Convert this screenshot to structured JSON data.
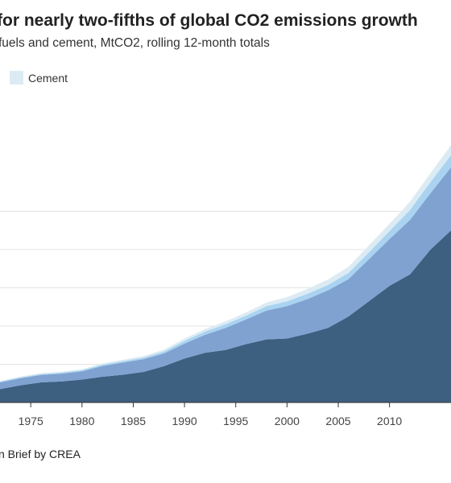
{
  "header": {
    "title": "for nearly two-fifths of global CO2 emissions growth",
    "subtitle": "fuels and cement, MtCO2, rolling 12-month totals"
  },
  "legend": {
    "items": [
      {
        "label": "Cement",
        "color": "#dcebf3"
      }
    ]
  },
  "footer": {
    "source": "n Brief by CREA"
  },
  "chart_data": {
    "type": "area",
    "stacked": true,
    "title": "for nearly two-fifths of global CO2 emissions growth",
    "subtitle": "fuels and cement, MtCO2, rolling 12-month totals",
    "x": [
      1972,
      1974,
      1976,
      1978,
      1980,
      1982,
      1984,
      1986,
      1988,
      1990,
      1992,
      1994,
      1996,
      1998,
      2000,
      2002,
      2004,
      2006,
      2008,
      2010,
      2012,
      2014,
      2016
    ],
    "series": [
      {
        "color": "#3d5f80",
        "values": [
          700,
          900,
          1050,
          1100,
          1200,
          1350,
          1450,
          1600,
          1900,
          2300,
          2600,
          2750,
          3050,
          3300,
          3350,
          3600,
          3900,
          4500,
          5300,
          6100,
          6700,
          8000,
          9000
        ]
      },
      {
        "color": "#7fa2d1",
        "values": [
          350,
          370,
          390,
          410,
          430,
          560,
          640,
          670,
          670,
          780,
          940,
          1150,
          1290,
          1510,
          1690,
          1810,
          1970,
          1950,
          2200,
          2450,
          2850,
          2950,
          3300
        ]
      },
      {
        "color": "#a9d3f0",
        "values": [
          40,
          45,
          50,
          55,
          60,
          70,
          75,
          80,
          100,
          140,
          170,
          190,
          200,
          230,
          250,
          280,
          280,
          330,
          360,
          420,
          520,
          580,
          640
        ]
      },
      {
        "name": "Cement",
        "color": "#dcebf3",
        "values": [
          40,
          42,
          45,
          48,
          50,
          60,
          70,
          80,
          100,
          120,
          130,
          150,
          170,
          190,
          220,
          250,
          280,
          320,
          360,
          380,
          430,
          470,
          520
        ]
      }
    ],
    "xlim": [
      1972,
      2016
    ],
    "ylim": [
      0,
      16000
    ],
    "x_ticks": [
      1975,
      1980,
      1985,
      1990,
      1995,
      2000,
      2005,
      2010
    ],
    "x_tick_labels": [
      "1975",
      "1980",
      "1985",
      "1990",
      "1995",
      "2000",
      "2005",
      "2010"
    ],
    "y_gridlines": [
      0,
      2000,
      4000,
      6000,
      8000,
      10000
    ],
    "grid": true,
    "legend_position": "top-left"
  }
}
